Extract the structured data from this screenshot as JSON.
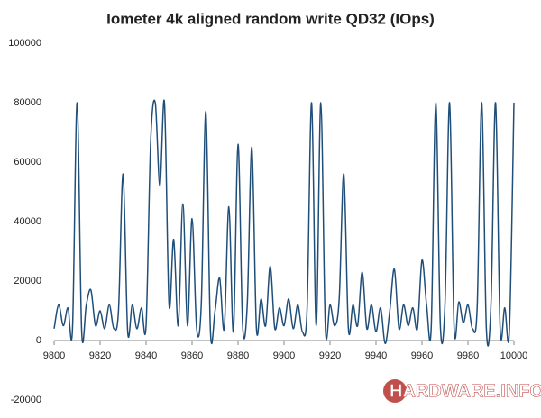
{
  "chart_data": {
    "type": "line",
    "title": "Iometer 4k aligned random write QD32 (IOps)",
    "watermark": "HARDWARE.INFO",
    "x": [
      9800,
      9802,
      9804,
      9806,
      9808,
      9810,
      9812,
      9814,
      9816,
      9818,
      9820,
      9822,
      9824,
      9826,
      9828,
      9830,
      9832,
      9834,
      9836,
      9838,
      9840,
      9842,
      9844,
      9846,
      9848,
      9850,
      9852,
      9854,
      9856,
      9858,
      9860,
      9862,
      9864,
      9866,
      9868,
      9870,
      9872,
      9874,
      9876,
      9878,
      9880,
      9882,
      9884,
      9886,
      9888,
      9890,
      9892,
      9894,
      9896,
      9898,
      9900,
      9902,
      9904,
      9906,
      9908,
      9910,
      9912,
      9914,
      9916,
      9918,
      9920,
      9922,
      9924,
      9926,
      9928,
      9930,
      9932,
      9934,
      9936,
      9938,
      9940,
      9942,
      9944,
      9946,
      9948,
      9950,
      9952,
      9954,
      9956,
      9958,
      9960,
      9962,
      9964,
      9966,
      9968,
      9970,
      9972,
      9974,
      9976,
      9978,
      9980,
      9982,
      9984,
      9986,
      9988,
      9990,
      9992,
      9994,
      9996,
      9998,
      10000
    ],
    "values": [
      4000,
      12000,
      5000,
      11000,
      4000,
      80000,
      3000,
      12000,
      17000,
      5000,
      10000,
      4000,
      12000,
      4000,
      10000,
      56000,
      3000,
      12000,
      4000,
      11000,
      5000,
      67000,
      80000,
      52000,
      80000,
      12000,
      34000,
      5000,
      46000,
      5000,
      41000,
      4000,
      12000,
      77000,
      3000,
      10000,
      21000,
      4000,
      45000,
      3000,
      66000,
      5000,
      12000,
      65000,
      4000,
      14000,
      5000,
      25000,
      4000,
      11000,
      5000,
      14000,
      4000,
      12000,
      3000,
      10000,
      80000,
      5000,
      80000,
      4000,
      12000,
      5000,
      14000,
      56000,
      4000,
      12000,
      5000,
      23000,
      4000,
      12000,
      3000,
      11000,
      -1000,
      10000,
      24000,
      4000,
      12000,
      5000,
      11000,
      4000,
      27000,
      12000,
      4000,
      80000,
      5000,
      12000,
      80000,
      4000,
      13000,
      6000,
      12000,
      4000,
      11000,
      80000,
      4000,
      12000,
      80000,
      4000,
      11000,
      3000,
      80000
    ],
    "color": "#1f4e79",
    "xlim": [
      9800,
      10000
    ],
    "xticks": [
      9800,
      9820,
      9840,
      9860,
      9880,
      9900,
      9920,
      9940,
      9960,
      9980,
      10000
    ],
    "ylim": [
      -20000,
      100000
    ],
    "yticks": [
      -20000,
      0,
      20000,
      40000,
      60000,
      80000,
      100000
    ],
    "grid": false
  }
}
